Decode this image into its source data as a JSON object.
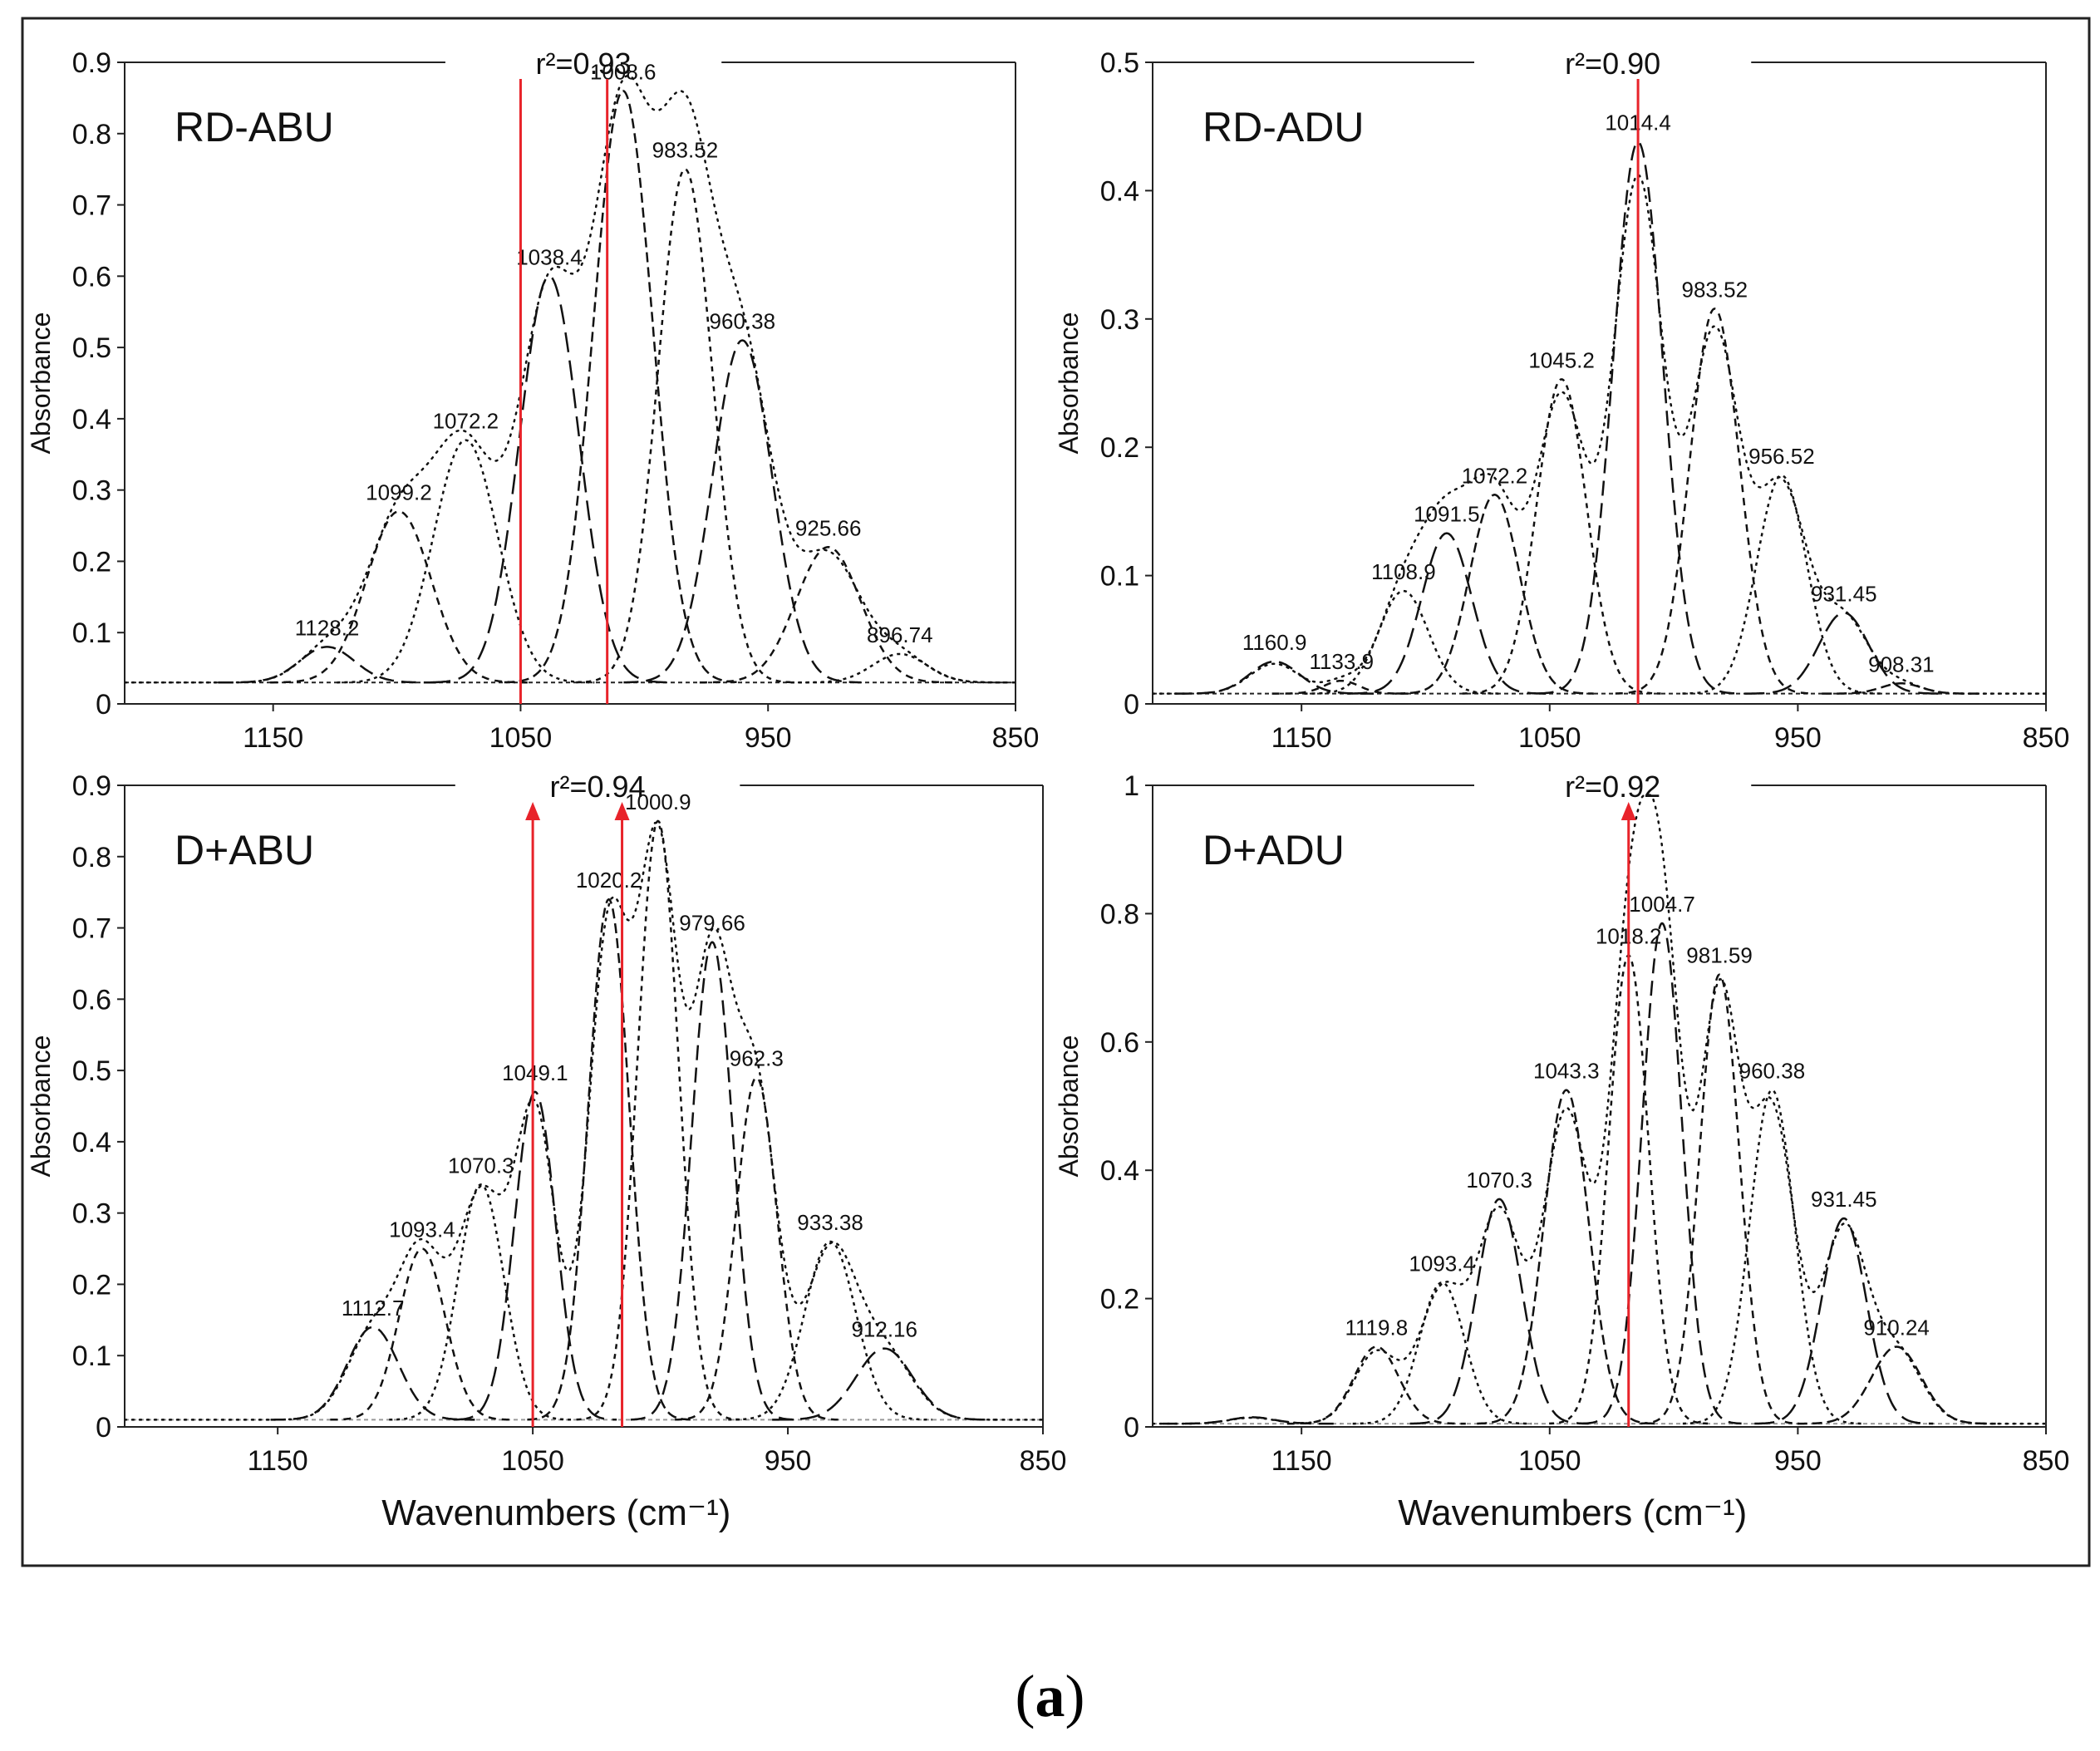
{
  "figure_label": {
    "open": "(",
    "letter": "a",
    "close": ")"
  },
  "colors": {
    "marker": "#e8232a",
    "curve": "#111111",
    "frame": "#222222",
    "baseline": "#999999"
  },
  "chart_data": [
    {
      "id": "rd-abu",
      "type": "line",
      "title": "RD-ABU",
      "r2_label": "r²=0.93",
      "xlabel": "",
      "ylabel": "Absorbance",
      "xlim": [
        1210,
        850
      ],
      "ylim": [
        0,
        0.9
      ],
      "xticks": [
        1150,
        1050,
        950,
        850
      ],
      "yticks": [
        0,
        0.1,
        0.2,
        0.3,
        0.4,
        0.5,
        0.6,
        0.7,
        0.8,
        0.9
      ],
      "baseline": 0.03,
      "markers": [
        1050,
        1015
      ],
      "marker_arrows": false,
      "peaks": [
        {
          "center": 1128.2,
          "height": 0.05,
          "width": 11,
          "label": "1128.2"
        },
        {
          "center": 1099.2,
          "height": 0.24,
          "width": 13,
          "label": "1099.2"
        },
        {
          "center": 1072.2,
          "height": 0.34,
          "width": 13,
          "label": "1072.2"
        },
        {
          "center": 1038.4,
          "height": 0.57,
          "width": 12,
          "label": "1038.4"
        },
        {
          "center": 1008.6,
          "height": 0.83,
          "width": 12,
          "label": "1008.6"
        },
        {
          "center": 983.52,
          "height": 0.72,
          "width": 11,
          "label": "983.52"
        },
        {
          "center": 960.38,
          "height": 0.48,
          "width": 12,
          "label": "960.38"
        },
        {
          "center": 925.66,
          "height": 0.19,
          "width": 13,
          "label": "925.66"
        },
        {
          "center": 896.74,
          "height": 0.04,
          "width": 11,
          "label": "896.74"
        }
      ]
    },
    {
      "id": "rd-adu",
      "type": "line",
      "title": "RD-ADU",
      "r2_label": "r²=0.90",
      "xlabel": "",
      "ylabel": "Absorbance",
      "xlim": [
        1210,
        850
      ],
      "ylim": [
        0,
        0.5
      ],
      "xticks": [
        1150,
        1050,
        950,
        850
      ],
      "yticks": [
        0,
        0.1,
        0.2,
        0.3,
        0.4,
        0.5
      ],
      "baseline": 0.008,
      "markers": [
        1014.4
      ],
      "marker_arrows": false,
      "peaks": [
        {
          "center": 1160.9,
          "height": 0.025,
          "width": 10,
          "label": "1160.9"
        },
        {
          "center": 1133.9,
          "height": 0.01,
          "width": 7,
          "label": "1133.9"
        },
        {
          "center": 1108.9,
          "height": 0.08,
          "width": 10,
          "label": "1108.9"
        },
        {
          "center": 1091.5,
          "height": 0.125,
          "width": 10,
          "label": "1091.5"
        },
        {
          "center": 1072.2,
          "height": 0.155,
          "width": 10,
          "label": "1072.2"
        },
        {
          "center": 1045.2,
          "height": 0.245,
          "width": 10,
          "label": "1045.2"
        },
        {
          "center": 1014.4,
          "height": 0.43,
          "width": 10,
          "label": "1014.4"
        },
        {
          "center": 983.52,
          "height": 0.3,
          "width": 10,
          "label": "983.52"
        },
        {
          "center": 956.52,
          "height": 0.17,
          "width": 10,
          "label": "956.52"
        },
        {
          "center": 931.45,
          "height": 0.063,
          "width": 10,
          "label": "931.45"
        },
        {
          "center": 908.31,
          "height": 0.008,
          "width": 8,
          "label": "908.31"
        }
      ]
    },
    {
      "id": "d-abu",
      "type": "line",
      "title": "D+ABU",
      "r2_label": "r²=0.94",
      "xlabel": "Wavenumbers (cm⁻¹)",
      "ylabel": "Absorbance",
      "xlim": [
        1210,
        850
      ],
      "ylim": [
        0,
        0.9
      ],
      "xticks": [
        1150,
        1050,
        950,
        850
      ],
      "yticks": [
        0,
        0.1,
        0.2,
        0.3,
        0.4,
        0.5,
        0.6,
        0.7,
        0.8,
        0.9
      ],
      "baseline": 0.01,
      "markers": [
        1050,
        1015
      ],
      "marker_arrows": true,
      "peaks": [
        {
          "center": 1112.7,
          "height": 0.13,
          "width": 10,
          "label": "1112.7"
        },
        {
          "center": 1093.4,
          "height": 0.24,
          "width": 9,
          "label": "1093.4"
        },
        {
          "center": 1070.3,
          "height": 0.33,
          "width": 9,
          "label": "1070.3"
        },
        {
          "center": 1049.1,
          "height": 0.46,
          "width": 8,
          "label": "1049.1"
        },
        {
          "center": 1020.2,
          "height": 0.73,
          "width": 8,
          "label": "1020.2"
        },
        {
          "center": 1000.9,
          "height": 0.84,
          "width": 8,
          "label": "1000.9"
        },
        {
          "center": 979.66,
          "height": 0.67,
          "width": 8,
          "label": "979.66"
        },
        {
          "center": 962.3,
          "height": 0.48,
          "width": 8,
          "label": "962.3"
        },
        {
          "center": 933.38,
          "height": 0.25,
          "width": 10,
          "label": "933.38"
        },
        {
          "center": 912.16,
          "height": 0.1,
          "width": 11,
          "label": "912.16"
        }
      ]
    },
    {
      "id": "d-adu",
      "type": "line",
      "title": "D+ADU",
      "r2_label": "r²=0.92",
      "xlabel": "Wavenumbers (cm⁻¹)",
      "ylabel": "Absorbance",
      "xlim": [
        1210,
        850
      ],
      "ylim": [
        0,
        1
      ],
      "xticks": [
        1150,
        1050,
        950,
        850
      ],
      "yticks": [
        0,
        0.2,
        0.4,
        0.6,
        0.8,
        1
      ],
      "baseline": 0.005,
      "markers": [
        1018.2
      ],
      "marker_arrows": true,
      "peaks": [
        {
          "center": 1170,
          "height": 0.01,
          "width": 9,
          "label": ""
        },
        {
          "center": 1119.8,
          "height": 0.12,
          "width": 9,
          "label": "1119.8"
        },
        {
          "center": 1093.4,
          "height": 0.22,
          "width": 9,
          "label": "1093.4"
        },
        {
          "center": 1070.3,
          "height": 0.35,
          "width": 9,
          "label": "1070.3"
        },
        {
          "center": 1043.3,
          "height": 0.52,
          "width": 9,
          "label": "1043.3"
        },
        {
          "center": 1018.2,
          "height": 0.73,
          "width": 8,
          "label": "1018.2"
        },
        {
          "center": 1004.7,
          "height": 0.78,
          "width": 8,
          "label": "1004.7"
        },
        {
          "center": 981.59,
          "height": 0.7,
          "width": 8,
          "label": "981.59"
        },
        {
          "center": 960.38,
          "height": 0.52,
          "width": 9,
          "label": "960.38"
        },
        {
          "center": 931.45,
          "height": 0.32,
          "width": 9,
          "label": "931.45"
        },
        {
          "center": 910.24,
          "height": 0.12,
          "width": 10,
          "label": "910.24"
        }
      ]
    }
  ]
}
